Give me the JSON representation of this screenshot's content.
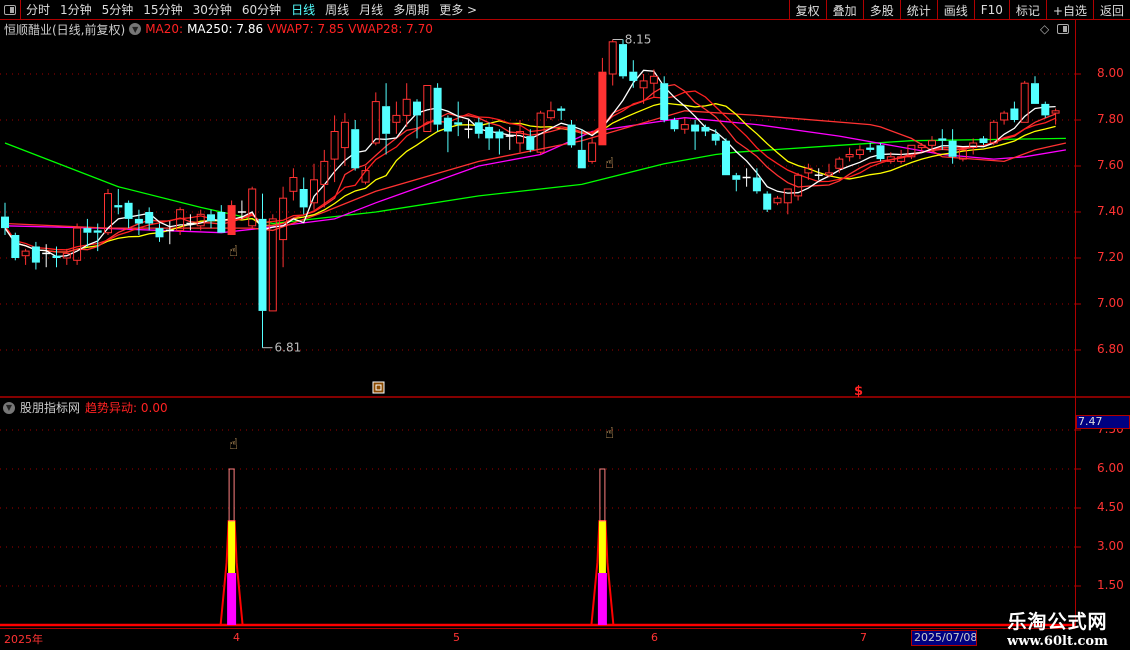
{
  "toolbar": {
    "items": [
      "分时",
      "1分钟",
      "5分钟",
      "15分钟",
      "30分钟",
      "60分钟",
      "日线",
      "周线",
      "月线",
      "多周期",
      "更多 >"
    ],
    "active": "日线",
    "buttons": [
      "复权",
      "叠加",
      "多股",
      "统计",
      "画线",
      "F10",
      "标记",
      "+自选",
      "返回"
    ]
  },
  "header": {
    "stock": "恒顺醋业(日线,前复权)",
    "ma20": "MA20:",
    "ma250": "MA250: 7.86",
    "vwap7": "VWAP7: 7.85",
    "vwap28": "VWAP28: 7.70"
  },
  "sub_header": {
    "name": "股朋指标网",
    "indicator": "趋势异动: 0.00",
    "value_box": "7.47"
  },
  "time_axis": {
    "labels": [
      "2025年",
      "4",
      "5",
      "6",
      "7"
    ],
    "cursor_date": "2025/07/08/"
  },
  "watermark": {
    "cn": "乐淘公式网",
    "url": "www.60lt.com"
  },
  "colors": {
    "up": "#ff3232",
    "down": "#54ffff",
    "ma5": "#ffffff",
    "ma_yellow": "#ffff00",
    "magenta": "#ff00ff",
    "green": "#00ff00",
    "axis": "#b00000"
  },
  "chart_data": [
    {
      "type": "candlestick",
      "y_ticks": [
        "8.00",
        "7.80",
        "7.60",
        "7.40",
        "7.20",
        "7.00",
        "6.80"
      ],
      "ylim": [
        6.66,
        8.2
      ],
      "annotations": {
        "high": "8.15",
        "low": "6.81"
      },
      "candles_ohlc": [
        [
          7.38,
          7.44,
          7.3,
          7.33
        ],
        [
          7.3,
          7.31,
          7.19,
          7.2
        ],
        [
          7.21,
          7.24,
          7.17,
          7.23
        ],
        [
          7.25,
          7.27,
          7.15,
          7.18
        ],
        [
          7.22,
          7.26,
          7.16,
          7.22
        ],
        [
          7.21,
          7.25,
          7.16,
          7.2
        ],
        [
          7.2,
          7.24,
          7.17,
          7.22
        ],
        [
          7.19,
          7.35,
          7.17,
          7.33
        ],
        [
          7.33,
          7.37,
          7.25,
          7.31
        ],
        [
          7.32,
          7.35,
          7.23,
          7.31
        ],
        [
          7.31,
          7.5,
          7.3,
          7.48
        ],
        [
          7.43,
          7.5,
          7.39,
          7.42
        ],
        [
          7.44,
          7.45,
          7.33,
          7.37
        ],
        [
          7.37,
          7.41,
          7.3,
          7.35
        ],
        [
          7.4,
          7.42,
          7.32,
          7.35
        ],
        [
          7.33,
          7.35,
          7.27,
          7.29
        ],
        [
          7.32,
          7.36,
          7.26,
          7.32
        ],
        [
          7.32,
          7.42,
          7.3,
          7.41
        ],
        [
          7.35,
          7.39,
          7.32,
          7.35
        ],
        [
          7.34,
          7.41,
          7.32,
          7.39
        ],
        [
          7.39,
          7.41,
          7.33,
          7.36
        ],
        [
          7.4,
          7.43,
          7.31,
          7.31
        ],
        [
          7.3,
          7.45,
          7.3,
          7.43
        ],
        [
          7.4,
          7.45,
          7.37,
          7.4
        ],
        [
          7.34,
          7.51,
          7.33,
          7.5
        ],
        [
          7.37,
          7.48,
          6.81,
          6.97
        ],
        [
          6.97,
          7.39,
          6.97,
          7.37
        ],
        [
          7.28,
          7.51,
          7.16,
          7.46
        ],
        [
          7.49,
          7.59,
          7.45,
          7.55
        ],
        [
          7.5,
          7.55,
          7.39,
          7.42
        ],
        [
          7.44,
          7.61,
          7.41,
          7.54
        ],
        [
          7.52,
          7.67,
          7.42,
          7.62
        ],
        [
          7.63,
          7.82,
          7.53,
          7.75
        ],
        [
          7.68,
          7.83,
          7.6,
          7.79
        ],
        [
          7.76,
          7.8,
          7.58,
          7.59
        ],
        [
          7.53,
          7.6,
          7.52,
          7.58
        ],
        [
          7.7,
          7.92,
          7.69,
          7.88
        ],
        [
          7.86,
          7.96,
          7.65,
          7.74
        ],
        [
          7.79,
          7.88,
          7.74,
          7.82
        ],
        [
          7.82,
          7.96,
          7.77,
          7.89
        ],
        [
          7.88,
          7.89,
          7.72,
          7.82
        ],
        [
          7.75,
          7.95,
          7.75,
          7.95
        ],
        [
          7.94,
          7.96,
          7.75,
          7.78
        ],
        [
          7.81,
          7.82,
          7.66,
          7.75
        ],
        [
          7.79,
          7.88,
          7.73,
          7.78
        ],
        [
          7.76,
          7.8,
          7.72,
          7.76
        ],
        [
          7.79,
          7.81,
          7.72,
          7.74
        ],
        [
          7.77,
          7.79,
          7.67,
          7.72
        ],
        [
          7.75,
          7.76,
          7.65,
          7.72
        ],
        [
          7.73,
          7.77,
          7.67,
          7.73
        ],
        [
          7.7,
          7.8,
          7.66,
          7.75
        ],
        [
          7.73,
          7.76,
          7.66,
          7.67
        ],
        [
          7.66,
          7.84,
          7.65,
          7.83
        ],
        [
          7.81,
          7.88,
          7.8,
          7.84
        ],
        [
          7.85,
          7.86,
          7.8,
          7.84
        ],
        [
          7.78,
          7.8,
          7.68,
          7.69
        ],
        [
          7.67,
          7.76,
          7.59,
          7.59
        ],
        [
          7.62,
          7.72,
          7.61,
          7.7
        ],
        [
          7.69,
          8.07,
          7.69,
          8.01
        ],
        [
          8.0,
          8.15,
          7.95,
          8.14
        ],
        [
          8.13,
          8.15,
          7.98,
          7.99
        ],
        [
          8.01,
          8.06,
          7.94,
          7.97
        ],
        [
          7.94,
          8.0,
          7.87,
          7.97
        ],
        [
          7.96,
          8.02,
          7.9,
          7.99
        ],
        [
          7.96,
          7.99,
          7.79,
          7.8
        ],
        [
          7.8,
          7.81,
          7.75,
          7.76
        ],
        [
          7.76,
          7.81,
          7.74,
          7.78
        ],
        [
          7.78,
          7.8,
          7.67,
          7.75
        ],
        [
          7.77,
          7.78,
          7.73,
          7.75
        ],
        [
          7.74,
          7.76,
          7.69,
          7.71
        ],
        [
          7.71,
          7.72,
          7.56,
          7.56
        ],
        [
          7.56,
          7.57,
          7.49,
          7.54
        ],
        [
          7.55,
          7.59,
          7.51,
          7.55
        ],
        [
          7.55,
          7.59,
          7.48,
          7.49
        ],
        [
          7.48,
          7.49,
          7.4,
          7.41
        ],
        [
          7.44,
          7.47,
          7.43,
          7.46
        ],
        [
          7.44,
          7.5,
          7.39,
          7.5
        ],
        [
          7.47,
          7.57,
          7.45,
          7.56
        ],
        [
          7.57,
          7.61,
          7.54,
          7.59
        ],
        [
          7.56,
          7.59,
          7.54,
          7.56
        ],
        [
          7.56,
          7.61,
          7.55,
          7.57
        ],
        [
          7.59,
          7.64,
          7.57,
          7.63
        ],
        [
          7.64,
          7.68,
          7.62,
          7.65
        ],
        [
          7.65,
          7.69,
          7.63,
          7.67
        ],
        [
          7.68,
          7.7,
          7.66,
          7.67
        ],
        [
          7.69,
          7.7,
          7.62,
          7.63
        ],
        [
          7.62,
          7.66,
          7.61,
          7.64
        ],
        [
          7.62,
          7.67,
          7.61,
          7.64
        ],
        [
          7.64,
          7.69,
          7.63,
          7.69
        ],
        [
          7.68,
          7.7,
          7.66,
          7.69
        ],
        [
          7.69,
          7.73,
          7.66,
          7.71
        ],
        [
          7.72,
          7.76,
          7.67,
          7.71
        ],
        [
          7.71,
          7.76,
          7.61,
          7.64
        ],
        [
          7.63,
          7.68,
          7.62,
          7.67
        ],
        [
          7.68,
          7.72,
          7.65,
          7.7
        ],
        [
          7.72,
          7.73,
          7.69,
          7.7
        ],
        [
          7.7,
          7.8,
          7.69,
          7.79
        ],
        [
          7.8,
          7.84,
          7.78,
          7.83
        ],
        [
          7.85,
          7.88,
          7.79,
          7.8
        ],
        [
          7.79,
          7.97,
          7.79,
          7.96
        ],
        [
          7.96,
          7.99,
          7.87,
          7.87
        ],
        [
          7.87,
          7.88,
          7.81,
          7.82
        ],
        [
          7.83,
          7.85,
          7.78,
          7.84
        ]
      ],
      "solid_up_candles": [
        22,
        58
      ],
      "lines": {
        "green": [
          [
            0,
            7.7
          ],
          [
            11,
            7.51
          ],
          [
            19,
            7.42
          ],
          [
            22,
            7.39
          ],
          [
            26,
            7.35
          ],
          [
            36,
            7.4
          ],
          [
            46,
            7.47
          ],
          [
            56,
            7.52
          ],
          [
            64,
            7.61
          ],
          [
            69,
            7.65
          ],
          [
            71,
            7.66
          ],
          [
            81,
            7.69
          ],
          [
            88,
            7.71
          ],
          [
            103,
            7.72
          ]
        ],
        "magenta": [
          [
            0,
            7.34
          ],
          [
            9,
            7.33
          ],
          [
            21,
            7.31
          ],
          [
            25,
            7.33
          ],
          [
            32,
            7.37
          ],
          [
            36,
            7.44
          ],
          [
            46,
            7.6
          ],
          [
            52,
            7.65
          ],
          [
            57,
            7.75
          ],
          [
            66,
            7.81
          ],
          [
            73,
            7.78
          ],
          [
            81,
            7.73
          ],
          [
            91,
            7.65
          ],
          [
            96,
            7.63
          ],
          [
            99,
            7.64
          ],
          [
            103,
            7.67
          ]
        ],
        "red_long": [
          [
            0,
            7.35
          ],
          [
            10,
            7.33
          ],
          [
            24,
            7.33
          ],
          [
            26,
            7.32
          ],
          [
            31,
            7.4
          ],
          [
            36,
            7.49
          ],
          [
            46,
            7.62
          ],
          [
            56,
            7.71
          ],
          [
            66,
            7.84
          ],
          [
            73,
            7.82
          ],
          [
            84,
            7.78
          ],
          [
            85,
            7.77
          ],
          [
            88,
            7.72
          ],
          [
            91,
            7.64
          ],
          [
            97,
            7.62
          ],
          [
            100,
            7.67
          ],
          [
            103,
            7.7
          ]
        ]
      }
    },
    {
      "type": "bar",
      "title": "趋势异动",
      "y_ticks": [
        "1.50",
        "3.00",
        "4.50",
        "6.00",
        "7.50"
      ],
      "ylim": [
        0,
        7.8
      ],
      "signals": [
        {
          "index": 22,
          "outline": 6.0,
          "yellow": 4.0,
          "magenta": 2.0
        },
        {
          "index": 58,
          "outline": 6.0,
          "yellow": 4.0,
          "magenta": 2.0
        }
      ]
    }
  ]
}
